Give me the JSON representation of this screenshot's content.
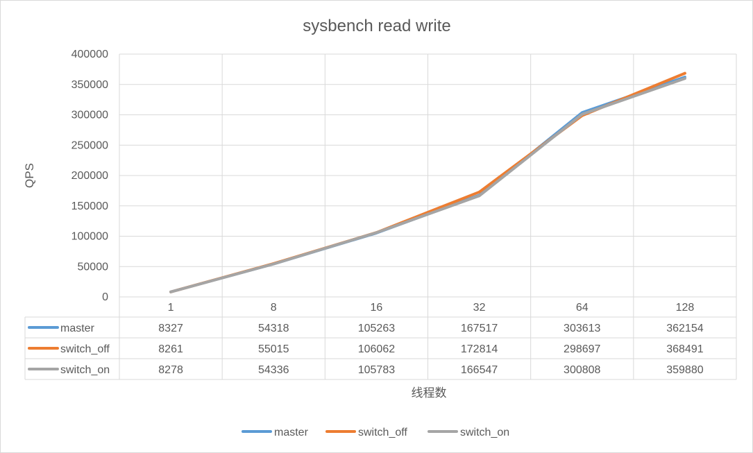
{
  "chart_data": {
    "type": "line",
    "title": "sysbench  read write",
    "xlabel": "线程数",
    "ylabel": "QPS",
    "categories": [
      "1",
      "8",
      "16",
      "32",
      "64",
      "128"
    ],
    "ylim": [
      0,
      400000
    ],
    "yticks": [
      0,
      50000,
      100000,
      150000,
      200000,
      250000,
      300000,
      350000,
      400000
    ],
    "grid": true,
    "legend": "bottom",
    "data_table": true,
    "series": [
      {
        "name": "master",
        "color": "#5B9BD5",
        "values": [
          8327,
          54318,
          105263,
          167517,
          303613,
          362154
        ]
      },
      {
        "name": "switch_off",
        "color": "#ED7D31",
        "values": [
          8261,
          55015,
          106062,
          172814,
          298697,
          368491
        ]
      },
      {
        "name": "switch_on",
        "color": "#A5A5A5",
        "values": [
          8278,
          54336,
          105783,
          166547,
          300808,
          359880
        ]
      }
    ]
  }
}
